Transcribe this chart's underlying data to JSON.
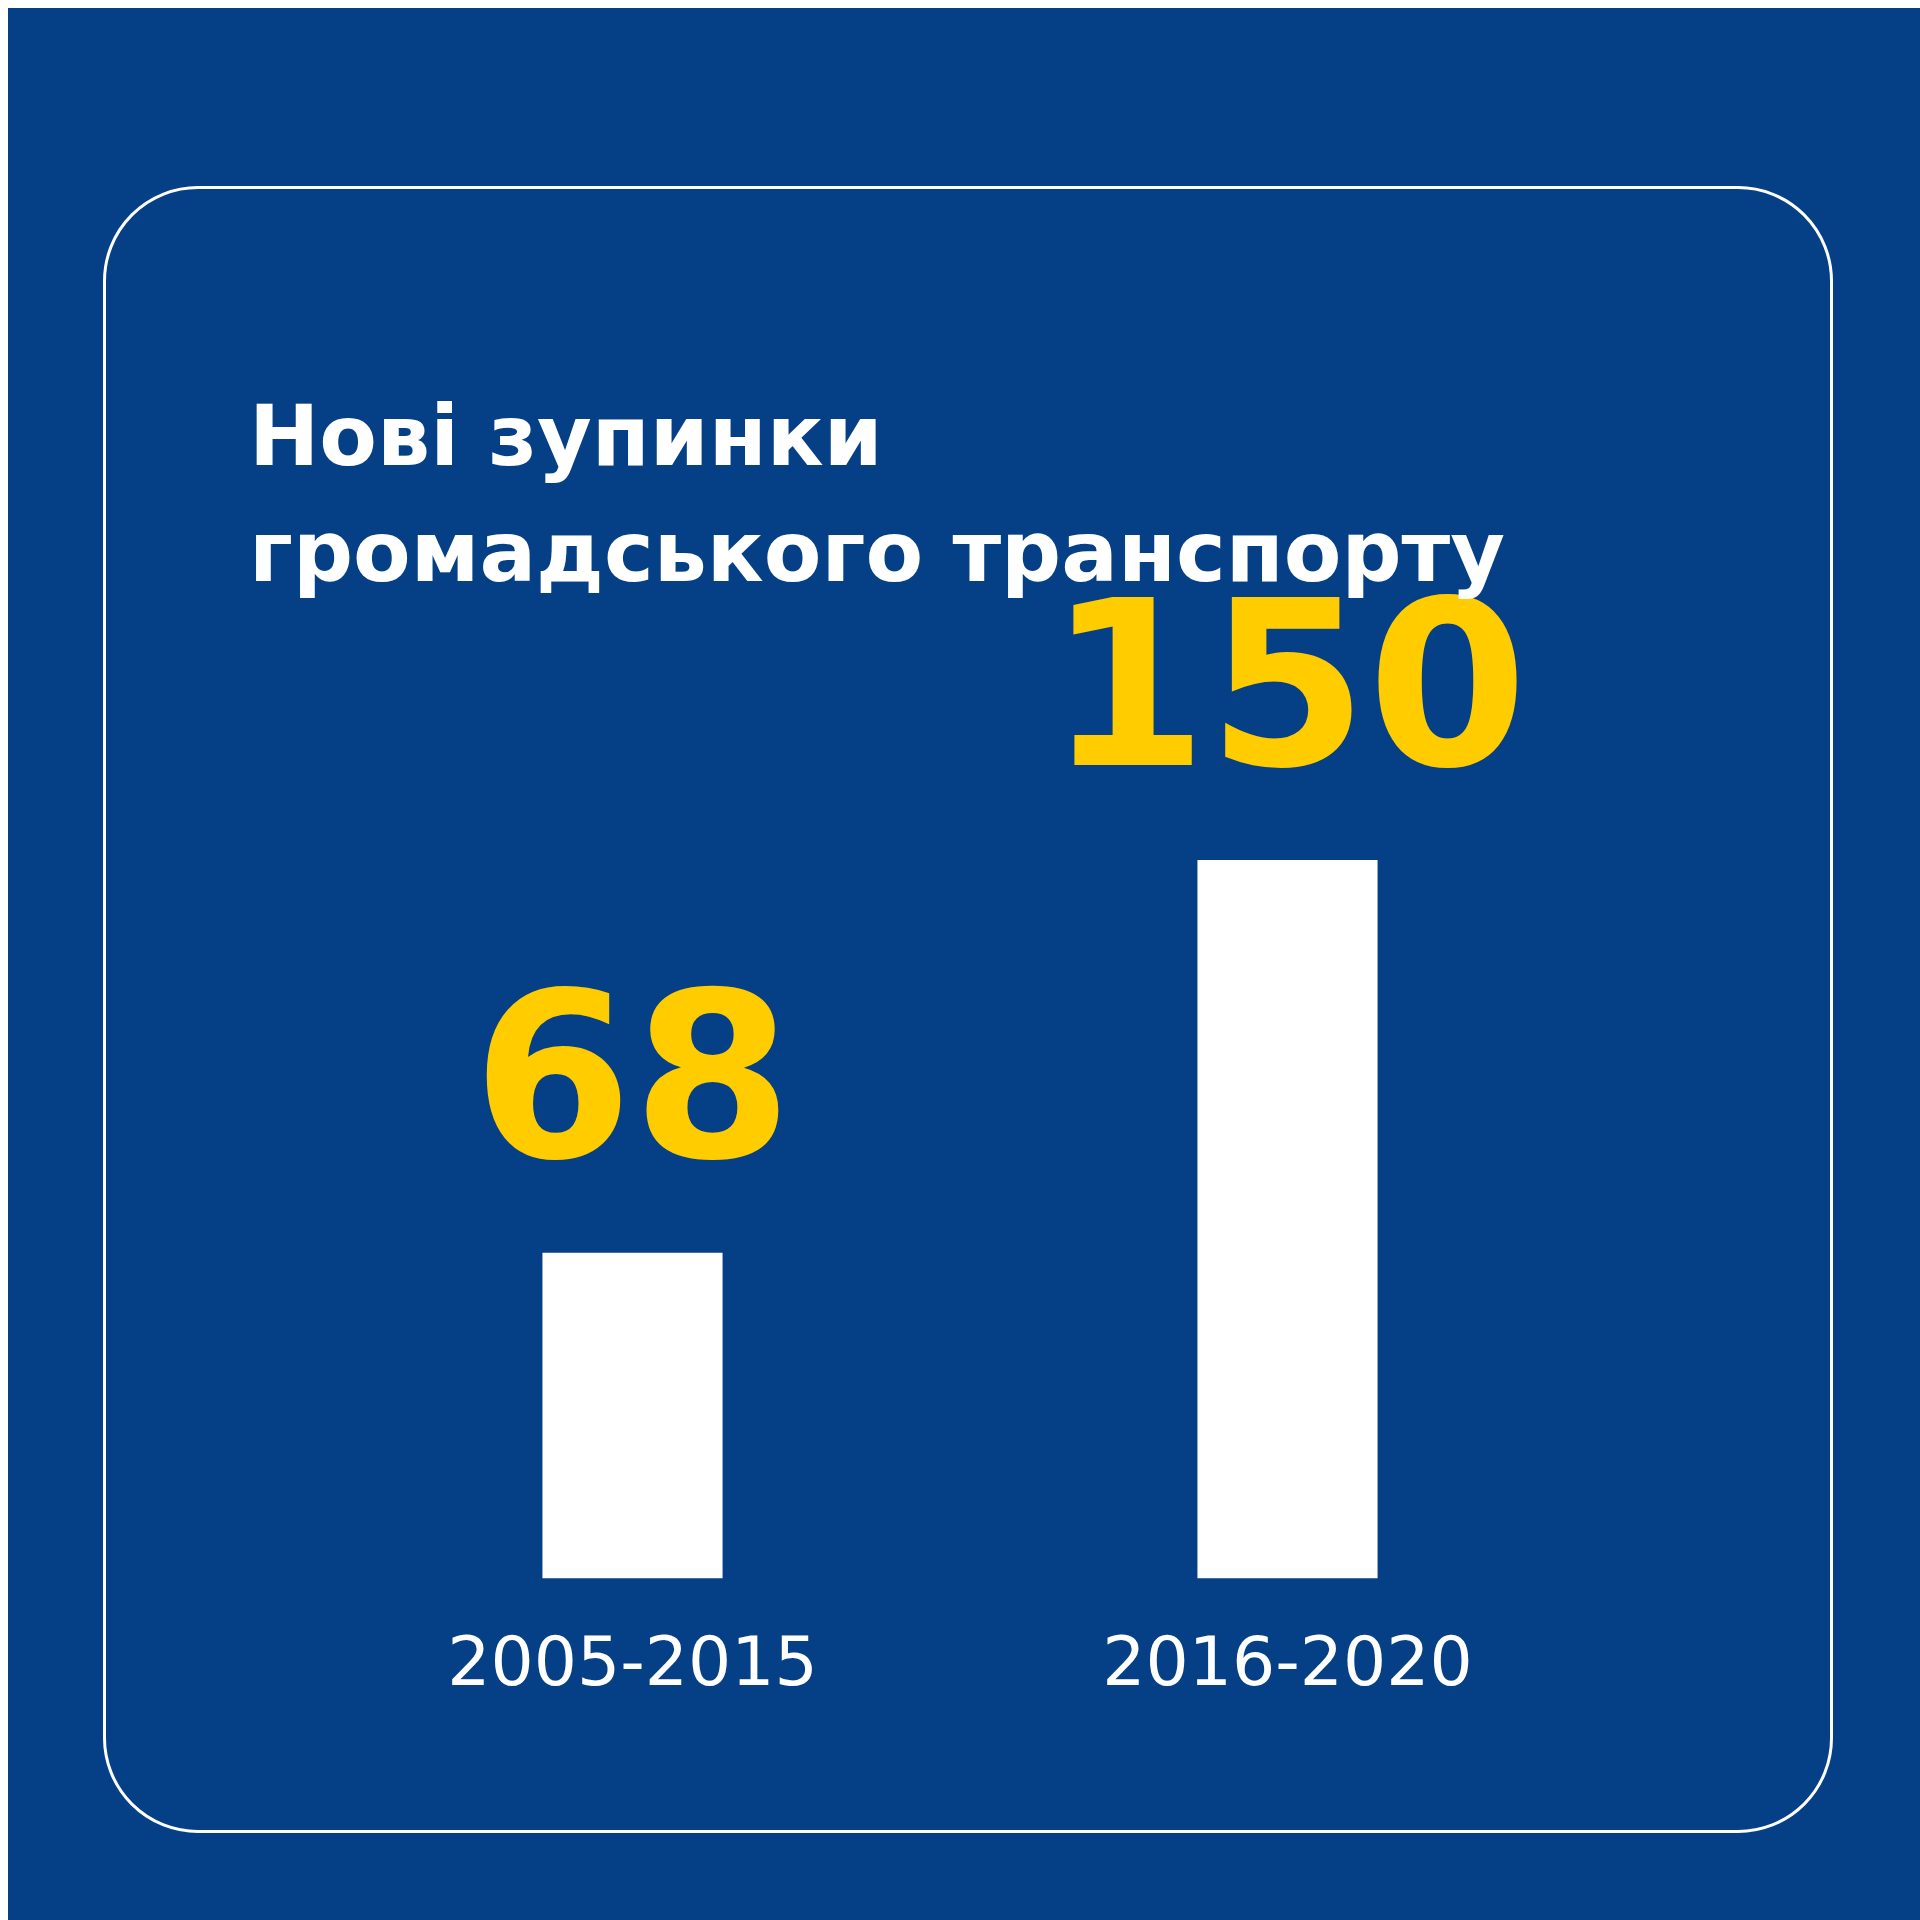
{
  "chart_data": {
    "type": "bar",
    "title": "Нові зупинки громадського транспорту",
    "categories": [
      "2005-2015",
      "2016-2020"
    ],
    "values": [
      68,
      150
    ],
    "color": "#ffffff",
    "data_labels": true,
    "grid": false,
    "legend": false,
    "tick_labels": "x"
  }
}
